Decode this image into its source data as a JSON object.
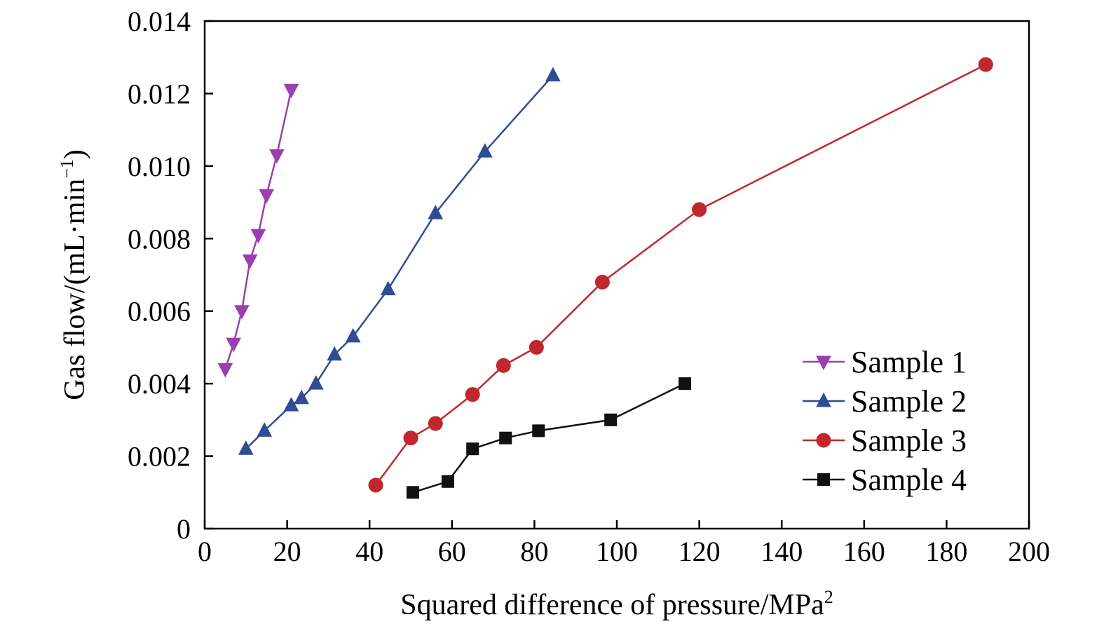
{
  "chart_data": {
    "type": "line",
    "xlabel": "Squared difference of pressure/MPa",
    "xlabel_sup": "2",
    "ylabel": "Gas flow/(mL·min",
    "ylabel_sup": "−1",
    "ylabel_close": ")",
    "xlim": [
      0,
      200
    ],
    "ylim": [
      0,
      0.014
    ],
    "xticks": [
      "0",
      "20",
      "40",
      "60",
      "80",
      "100",
      "120",
      "140",
      "160",
      "180",
      "200"
    ],
    "yticks": [
      "0",
      "0.002",
      "0.004",
      "0.006",
      "0.008",
      "0.010",
      "0.012",
      "0.014"
    ],
    "grid": false,
    "legend_position": "bottom-right",
    "series": [
      {
        "name": "Sample 1",
        "color": "#9b3fb0",
        "marker": "triangle-down",
        "x": [
          5,
          7,
          9,
          11,
          13,
          15,
          17.5,
          21
        ],
        "y": [
          0.0044,
          0.0051,
          0.006,
          0.0074,
          0.0081,
          0.0092,
          0.0103,
          0.0121
        ]
      },
      {
        "name": "Sample 2",
        "color": "#2e4d94",
        "marker": "triangle-up",
        "x": [
          10,
          14.5,
          21,
          23.5,
          27,
          31.5,
          36,
          44.5,
          56,
          68,
          84.5
        ],
        "y": [
          0.0022,
          0.0027,
          0.0034,
          0.0036,
          0.004,
          0.0048,
          0.0053,
          0.0066,
          0.0087,
          0.0104,
          0.0125
        ]
      },
      {
        "name": "Sample 3",
        "color": "#c0282d",
        "marker": "circle",
        "x": [
          41.5,
          50,
          56,
          65,
          72.5,
          80.5,
          96.5,
          120,
          189.5
        ],
        "y": [
          0.0012,
          0.0025,
          0.0029,
          0.0037,
          0.0045,
          0.005,
          0.0068,
          0.0088,
          0.0128
        ]
      },
      {
        "name": "Sample 4",
        "color": "#111111",
        "marker": "square",
        "x": [
          50.5,
          59,
          65,
          73,
          81,
          98.5,
          116.5
        ],
        "y": [
          0.001,
          0.0013,
          0.0022,
          0.0025,
          0.0027,
          0.003,
          0.004
        ]
      }
    ]
  }
}
